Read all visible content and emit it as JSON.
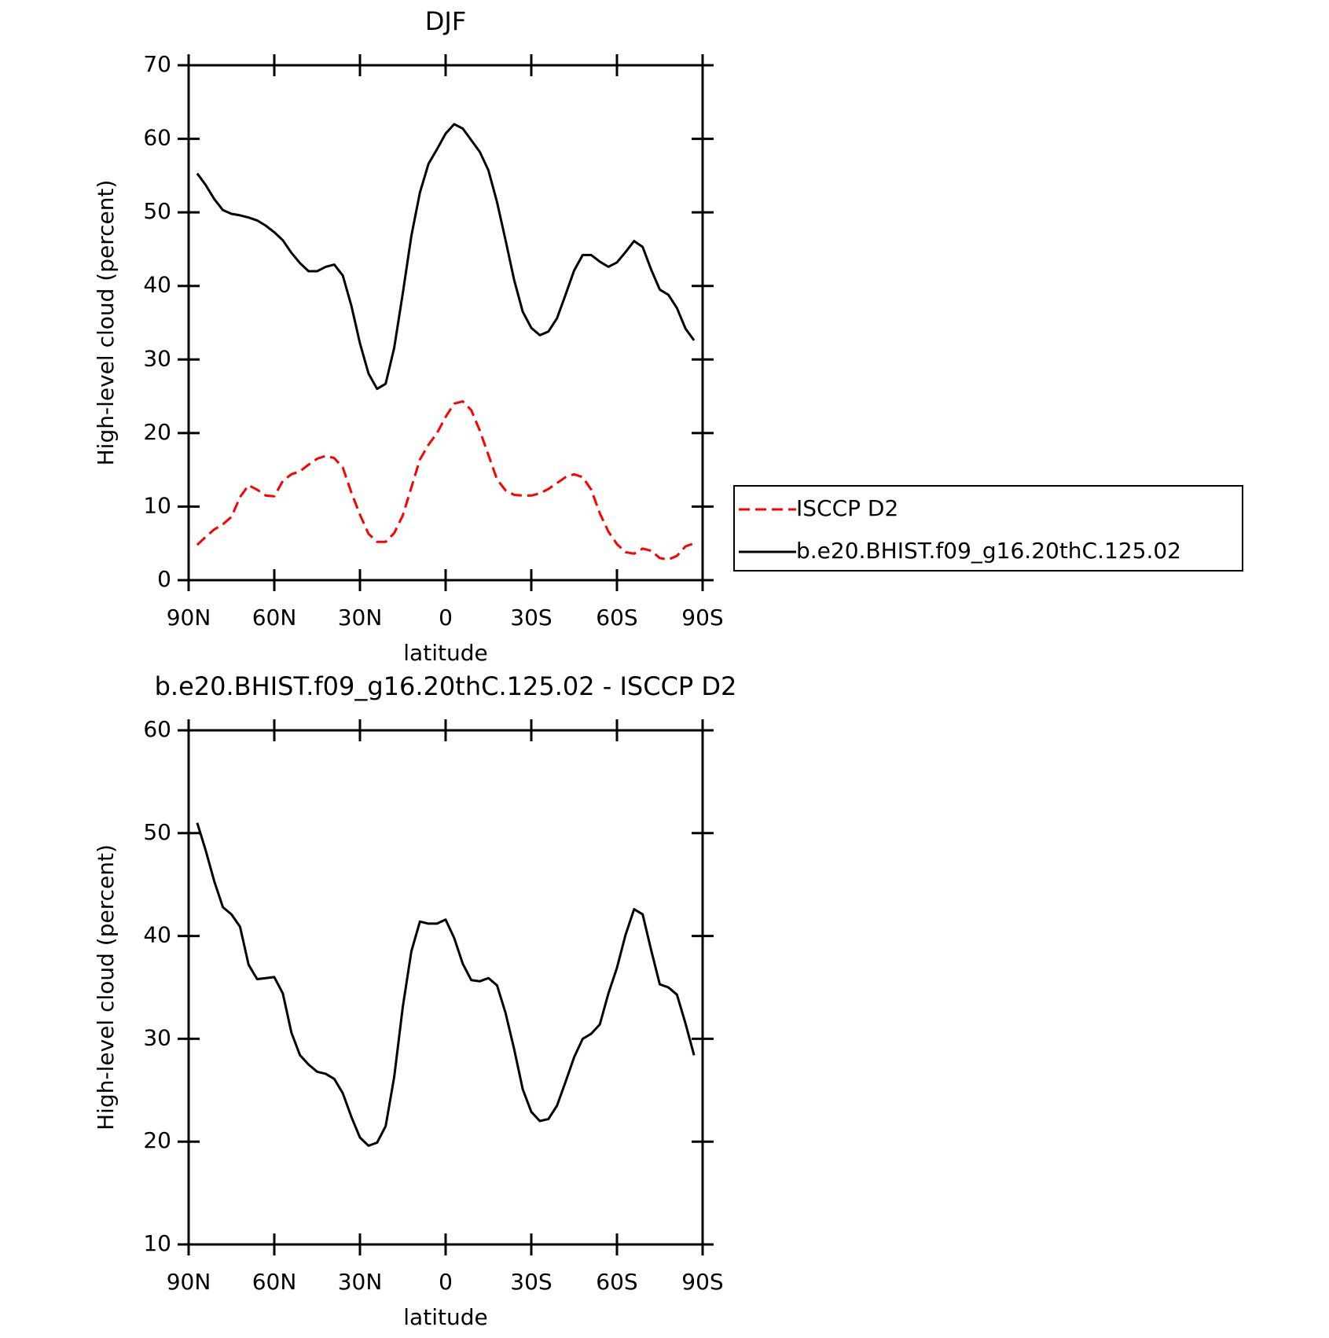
{
  "chart_data": [
    {
      "type": "line",
      "title": "DJF",
      "xlabel": "latitude",
      "ylabel": "High-level cloud (percent)",
      "x": [
        87,
        84,
        81,
        78,
        75,
        72,
        69,
        66,
        63,
        60,
        57,
        54,
        51,
        48,
        45,
        42,
        39,
        36,
        33,
        30,
        27,
        24,
        21,
        18,
        15,
        12,
        9,
        6,
        3,
        0,
        -3,
        -6,
        -9,
        -12,
        -15,
        -18,
        -21,
        -24,
        -27,
        -30,
        -33,
        -36,
        -39,
        -42,
        -45,
        -48,
        -51,
        -54,
        -57,
        -60,
        -63,
        -66,
        -69,
        -72,
        -75,
        -78,
        -81,
        -84,
        -87
      ],
      "series": [
        {
          "name": "ISCCP D2",
          "color": "#ff0000",
          "dashed": true,
          "values": [
            4.8,
            5.9,
            6.9,
            7.6,
            8.6,
            11.3,
            12.9,
            12.3,
            11.5,
            11.4,
            13.5,
            14.4,
            14.8,
            15.7,
            16.5,
            16.9,
            16.6,
            15.3,
            11.9,
            8.9,
            6.3,
            5.2,
            5.2,
            6.4,
            8.8,
            12.6,
            16.4,
            18.4,
            20,
            22.2,
            24,
            24.3,
            23.1,
            20.3,
            17,
            13.7,
            12.2,
            11.6,
            11.5,
            11.5,
            11.8,
            12.4,
            13.2,
            14,
            14.4,
            14,
            12.3,
            9.1,
            6.6,
            4.9,
            3.8,
            3.6,
            4.3,
            4,
            3,
            2.8,
            3.3,
            4.6,
            5
          ]
        },
        {
          "name": "b.e20.BHIST.f09_g16.20thC.125.02",
          "color": "#000000",
          "dashed": false,
          "values": [
            55.3,
            53.7,
            51.8,
            50.3,
            49.8,
            49.6,
            49.3,
            48.9,
            48.2,
            47.3,
            46.2,
            44.5,
            43.1,
            42,
            42,
            42.6,
            42.9,
            41.4,
            37.3,
            32.2,
            28.1,
            26,
            26.7,
            31.6,
            39,
            46.8,
            52.7,
            56.6,
            58.6,
            60.7,
            62,
            61.4,
            59.8,
            58.2,
            55.7,
            51.4,
            46.2,
            40.8,
            36.5,
            34.3,
            33.3,
            33.8,
            35.6,
            38.8,
            42.1,
            44.2,
            44.2,
            43.3,
            42.6,
            43.2,
            44.6,
            46.1,
            45.3,
            42.2,
            39.5,
            38.8,
            37,
            34.2,
            32.6
          ]
        }
      ],
      "xlim": [
        90,
        -90
      ],
      "xticks": [
        {
          "value": 90,
          "label": "90N"
        },
        {
          "value": 60,
          "label": "60N"
        },
        {
          "value": 30,
          "label": "30N"
        },
        0,
        {
          "value": -30,
          "label": "30S"
        },
        {
          "value": -60,
          "label": "60S"
        },
        {
          "value": -90,
          "label": "90S"
        }
      ],
      "ylim": [
        0,
        70
      ],
      "yticks": [
        0,
        10,
        20,
        30,
        40,
        50,
        60,
        70
      ],
      "legend": "right"
    },
    {
      "type": "line",
      "title": "b.e20.BHIST.f09_g16.20thC.125.02 - ISCCP D2",
      "xlabel": "latitude",
      "ylabel": "High-level cloud (percent)",
      "x": [
        87,
        84,
        81,
        78,
        75,
        72,
        69,
        66,
        63,
        60,
        57,
        54,
        51,
        48,
        45,
        42,
        39,
        36,
        33,
        30,
        27,
        24,
        21,
        18,
        15,
        12,
        9,
        6,
        3,
        0,
        -3,
        -6,
        -9,
        -12,
        -15,
        -18,
        -21,
        -24,
        -27,
        -30,
        -33,
        -36,
        -39,
        -42,
        -45,
        -48,
        -51,
        -54,
        -57,
        -60,
        -63,
        -66,
        -69,
        -72,
        -75,
        -78,
        -81,
        -84,
        -87
      ],
      "series": [
        {
          "color": "#000000",
          "dashed": false,
          "values": [
            51,
            48.3,
            45.3,
            42.8,
            42.1,
            40.9,
            37.2,
            35.8,
            35.9,
            36,
            34.4,
            30.6,
            28.4,
            27.5,
            26.8,
            26.6,
            26.1,
            24.7,
            22.4,
            20.4,
            19.6,
            19.9,
            21.5,
            26.3,
            33.1,
            38.5,
            41.4,
            41.2,
            41.2,
            41.6,
            39.8,
            37.3,
            35.7,
            35.6,
            35.9,
            35.2,
            32.5,
            29,
            25.1,
            22.9,
            22,
            22.2,
            23.5,
            25.8,
            28.2,
            30,
            30.5,
            31.4,
            34.4,
            36.9,
            40.1,
            42.6,
            42.1,
            38.6,
            35.3,
            35,
            34.3,
            31.5,
            28.4
          ]
        }
      ],
      "xlim": [
        90,
        -90
      ],
      "xticks": [
        {
          "value": 90,
          "label": "90N"
        },
        {
          "value": 60,
          "label": "60N"
        },
        {
          "value": 30,
          "label": "30N"
        },
        0,
        {
          "value": -30,
          "label": "30S"
        },
        {
          "value": -60,
          "label": "60S"
        },
        {
          "value": -90,
          "label": "90S"
        }
      ],
      "ylim": [
        10,
        60
      ],
      "yticks": [
        10,
        20,
        30,
        40,
        50,
        60
      ]
    }
  ]
}
